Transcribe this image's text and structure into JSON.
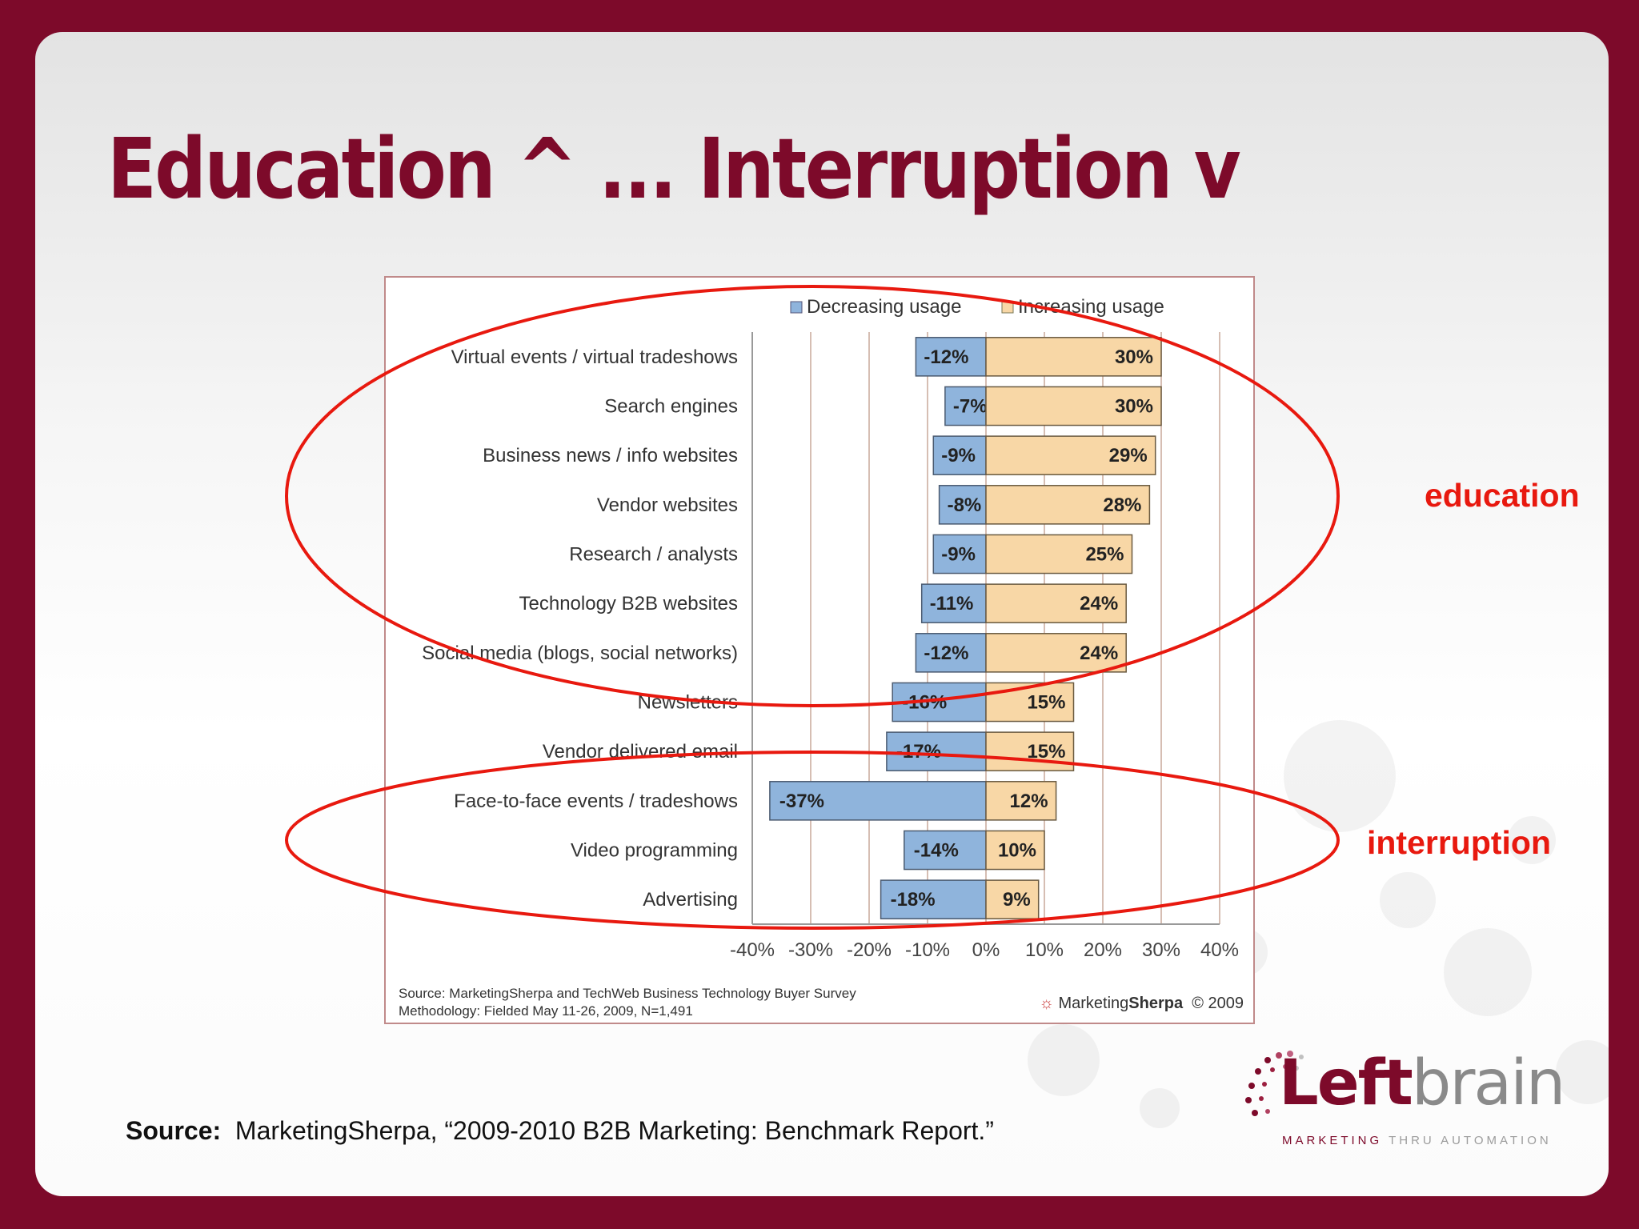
{
  "slide": {
    "title": "Education ^ ... Interruption v",
    "annotations": {
      "education_label": "education",
      "interruption_label": "interruption"
    },
    "source": {
      "label": "Source:",
      "text": "MarketingSherpa, “2009-2010 B2B Marketing:  Benchmark Report.”"
    },
    "logo": {
      "word_part1": "Left",
      "word_part2": "brain",
      "tagline_part1": "MARKETING",
      "tagline_part2": "THRU AUTOMATION"
    },
    "colors": {
      "background": "#7d0a2a",
      "annotation": "#e8190f"
    }
  },
  "chart_data": {
    "type": "bar",
    "orientation": "horizontal",
    "categories": [
      "Virtual events / virtual tradeshows",
      "Search engines",
      "Business news / info websites",
      "Vendor websites",
      "Research / analysts",
      "Technology B2B websites",
      "Social media (blogs, social networks)",
      "Newsletters",
      "Vendor delivered email",
      "Face-to-face events / tradeshows",
      "Video programming",
      "Advertising"
    ],
    "series": [
      {
        "name": "Decreasing usage",
        "color": "#8fb4dc",
        "values": [
          -12,
          -7,
          -9,
          -8,
          -9,
          -11,
          -12,
          -16,
          -17,
          -37,
          -14,
          -18
        ],
        "labels": [
          "-12%",
          "-7%",
          "-9%",
          "-8%",
          "-9%",
          "-11%",
          "-12%",
          "-16%",
          "-17%",
          "-37%",
          "-14%",
          "-18%"
        ]
      },
      {
        "name": "Increasing usage",
        "color": "#f8d7a6",
        "values": [
          30,
          30,
          29,
          28,
          25,
          24,
          24,
          15,
          15,
          12,
          10,
          9
        ],
        "labels": [
          "30%",
          "30%",
          "29%",
          "28%",
          "25%",
          "24%",
          "24%",
          "15%",
          "15%",
          "12%",
          "10%",
          "9%"
        ]
      }
    ],
    "xlim": [
      -40,
      40
    ],
    "xticks": [
      -40,
      -30,
      -20,
      -10,
      0,
      10,
      20,
      30,
      40
    ],
    "xtick_labels": [
      "-40%",
      "-30%",
      "-20%",
      "-10%",
      "0%",
      "10%",
      "20%",
      "30%",
      "40%"
    ],
    "grid": true,
    "legend_position": "top",
    "source_line1": "Source: MarketingSherpa and TechWeb Business Technology Buyer Survey",
    "source_line2": "Methodology: Fielded May 11-26, 2009, N=1,491",
    "brand_part1": "Marketing",
    "brand_part2": "Sherpa",
    "brand_year": "© 2009"
  }
}
